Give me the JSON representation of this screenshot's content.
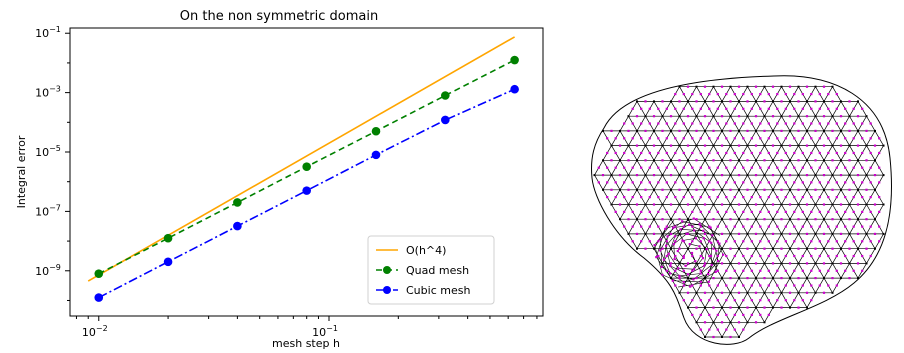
{
  "chart_data": {
    "type": "line",
    "title": "On the non symmetric domain",
    "xlabel": "mesh step h",
    "ylabel": "Integral error",
    "xscale": "log",
    "yscale": "log",
    "xlim": [
      0.0075,
      0.85
    ],
    "ylim": [
      3e-11,
      0.15
    ],
    "xticks": [
      {
        "value": 0.01,
        "base": "10",
        "exp": "−2"
      },
      {
        "value": 0.1,
        "base": "10",
        "exp": "−1"
      }
    ],
    "yticks": [
      {
        "value": 1e-09,
        "base": "10",
        "exp": "−9"
      },
      {
        "value": 1e-07,
        "base": "10",
        "exp": "−7"
      },
      {
        "value": 1e-05,
        "base": "10",
        "exp": "−5"
      },
      {
        "value": 0.001,
        "base": "10",
        "exp": "−3"
      },
      {
        "value": 0.1,
        "base": "10",
        "exp": "−1"
      }
    ],
    "grid": false,
    "legend_position": "lower-right",
    "series": [
      {
        "name": "O(h^4)",
        "color": "#ffa500",
        "line_style": "solid",
        "marker": "none",
        "x": [
          0.009,
          0.64
        ],
        "y": [
          4.5e-10,
          0.075
        ]
      },
      {
        "name": "Quad mesh",
        "color": "#008000",
        "line_style": "dashed",
        "marker": "circle",
        "x": [
          0.01,
          0.02,
          0.04,
          0.08,
          0.16,
          0.32,
          0.64
        ],
        "y": [
          8e-10,
          1.25e-08,
          2e-07,
          3.2e-06,
          5e-05,
          0.0008,
          0.0125
        ]
      },
      {
        "name": "Cubic mesh",
        "color": "#0000ff",
        "line_style": "dashdot",
        "marker": "circle",
        "x": [
          0.01,
          0.02,
          0.04,
          0.08,
          0.16,
          0.32,
          0.64
        ],
        "y": [
          1.25e-10,
          2e-09,
          3.2e-08,
          5e-07,
          8e-06,
          0.00012,
          0.0013
        ]
      }
    ]
  },
  "mesh_image": {
    "description_icon": "triangular-mesh-icon",
    "edge_color": "#000000",
    "node_color": "#cc00cc"
  }
}
